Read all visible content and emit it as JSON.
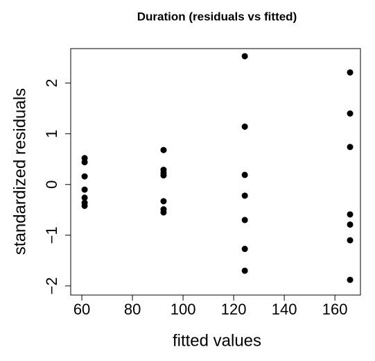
{
  "chart_data": {
    "type": "scatter",
    "title": "Duration (residuals vs fitted)",
    "xlabel": "fitted values",
    "ylabel": "standardized residuals",
    "x": [
      61.1,
      61.1,
      61.1,
      61.1,
      61.1,
      61.1,
      61.1,
      92.3,
      92.3,
      92.3,
      92.3,
      92.3,
      92.3,
      92.3,
      124.4,
      124.4,
      124.4,
      124.4,
      124.4,
      124.4,
      124.4,
      166,
      166,
      166,
      166,
      166,
      166,
      166
    ],
    "y": [
      0.52,
      0.44,
      0.16,
      -0.1,
      -0.26,
      -0.36,
      -0.42,
      0.68,
      0.29,
      0.23,
      0.18,
      -0.33,
      -0.49,
      -0.55,
      2.53,
      1.14,
      0.19,
      -0.22,
      -0.7,
      -1.27,
      -1.7,
      2.21,
      1.4,
      0.74,
      -0.59,
      -0.79,
      -1.1,
      -1.88
    ],
    "color": "#000000",
    "xlim": [
      55.6,
      170.1
    ],
    "xticks": [
      60,
      80,
      100,
      120,
      140,
      160
    ],
    "ylim": [
      -2.18,
      2.68
    ],
    "yticks": [
      {
        "value": -2,
        "label": "−2"
      },
      {
        "value": -1,
        "label": "−1"
      },
      0,
      1,
      2
    ]
  }
}
